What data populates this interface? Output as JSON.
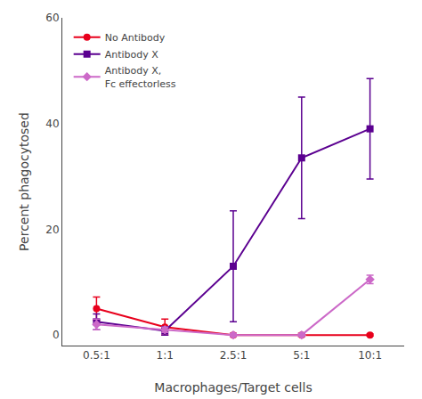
{
  "chart_data": {
    "type": "line",
    "xlabel": "Macrophages/Target cells",
    "ylabel": "Percent phagocytosed",
    "categories": [
      "0.5:1",
      "1:1",
      "2.5:1",
      "5:1",
      "10:1"
    ],
    "series": [
      {
        "name": "No Antibody",
        "color": "#e8001c",
        "marker": "circle",
        "values": [
          5.0,
          1.5,
          0.0,
          0.0,
          0.0
        ],
        "yerr": [
          2.2,
          1.5,
          0.3,
          0.3,
          0.2
        ]
      },
      {
        "name": "Antibody X",
        "color": "#5b0090",
        "marker": "square",
        "values": [
          2.5,
          0.8,
          13.0,
          33.5,
          39.0
        ],
        "yerr": [
          1.5,
          0.8,
          10.5,
          11.5,
          9.5
        ]
      },
      {
        "name": "Antibody X,\nFc effectorless",
        "color": "#cc69c8",
        "marker": "diamond",
        "values": [
          2.0,
          1.0,
          0.0,
          0.0,
          10.5
        ],
        "yerr": [
          1.0,
          0.5,
          0.3,
          0.3,
          0.8
        ]
      }
    ],
    "ylim": [
      -2,
      60
    ],
    "yticks": [
      0,
      20,
      40,
      60
    ],
    "grid": false,
    "legend": "upper left"
  }
}
